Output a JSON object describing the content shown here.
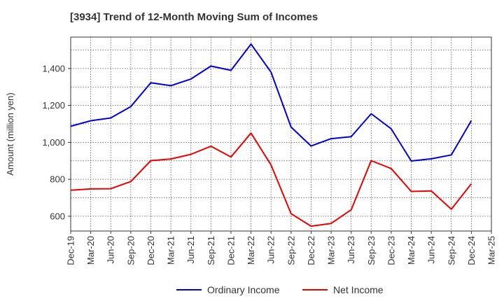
{
  "chart_data": {
    "type": "line",
    "title": "[3934]  Trend of 12-Month Moving Sum of Incomes",
    "xlabel": "",
    "ylabel": "Amount (million yen)",
    "ylim": [
      520,
      1570
    ],
    "yticks": [
      600,
      800,
      1000,
      1200,
      1400
    ],
    "ytick_labels": [
      "600",
      "800",
      "1,000",
      "1,200",
      "1,400"
    ],
    "categories": [
      "Dec-19",
      "Mar-20",
      "Jun-20",
      "Sep-20",
      "Dec-20",
      "Mar-21",
      "Jun-21",
      "Sep-21",
      "Dec-21",
      "Mar-22",
      "Jun-22",
      "Sep-22",
      "Dec-22",
      "Mar-23",
      "Jun-23",
      "Sep-23",
      "Dec-23",
      "Mar-24",
      "Jun-24",
      "Sep-24",
      "Dec-24",
      "Mar-25"
    ],
    "series": [
      {
        "name": "Ordinary Income",
        "color": "#0000dd",
        "values": [
          1087,
          1117,
          1132,
          1194,
          1323,
          1307,
          1343,
          1413,
          1390,
          1532,
          1380,
          1083,
          980,
          1020,
          1031,
          1155,
          1073,
          899,
          911,
          932,
          1118,
          null
        ]
      },
      {
        "name": "Net Income",
        "color": "#ee0000",
        "values": [
          741,
          748,
          749,
          788,
          901,
          910,
          935,
          979,
          921,
          1050,
          878,
          614,
          546,
          561,
          635,
          901,
          858,
          734,
          737,
          638,
          776,
          null
        ]
      }
    ],
    "legend_position": "bottom-center",
    "grid": true
  }
}
